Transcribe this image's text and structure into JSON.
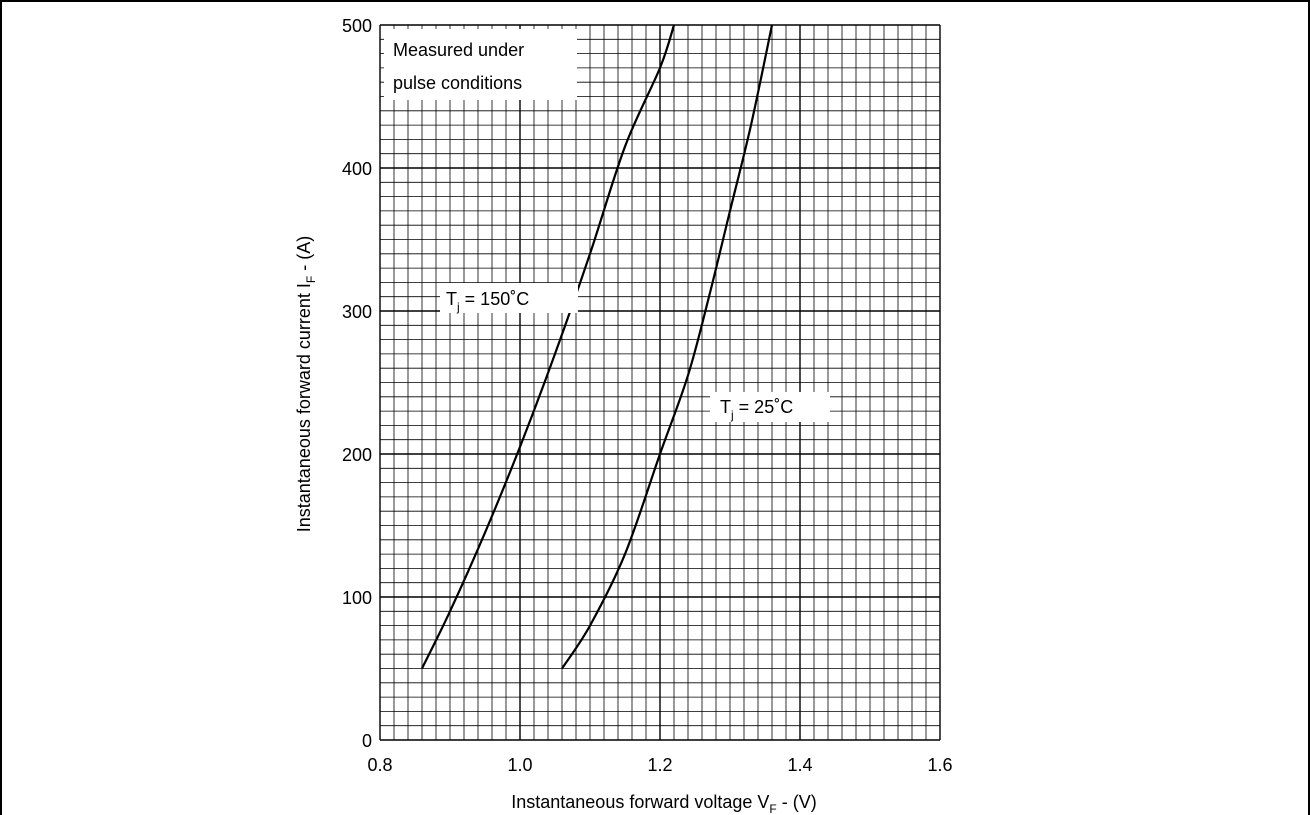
{
  "chart_data": {
    "type": "line",
    "xlabel": "Instantaneous forward voltage V",
    "xlabel_sub": "F",
    "xlabel_unit": " - (V)",
    "ylabel": "Instantaneous forward current I",
    "ylabel_sub": "F",
    "ylabel_unit": " - (A)",
    "xlim": [
      0.8,
      1.6
    ],
    "ylim": [
      0,
      500
    ],
    "xticks": [
      "0.8",
      "1.0",
      "1.2",
      "1.4",
      "1.6"
    ],
    "yticks": [
      "0",
      "100",
      "200",
      "300",
      "400",
      "500"
    ],
    "grid": true,
    "note_line1": "Measured under",
    "note_line2": "pulse conditions",
    "series": [
      {
        "label_main": "T",
        "label_sub": "j",
        "label_rest": " = 150˚C",
        "x": [
          0.86,
          0.9,
          0.95,
          1.0,
          1.05,
          1.1,
          1.15,
          1.2,
          1.22
        ],
        "y": [
          50,
          90,
          145,
          205,
          270,
          340,
          415,
          470,
          500
        ]
      },
      {
        "label_main": "T",
        "label_sub": "j",
        "label_rest": " = 25˚C",
        "x": [
          1.06,
          1.1,
          1.15,
          1.2,
          1.24,
          1.27,
          1.3,
          1.33,
          1.36
        ],
        "y": [
          50,
          80,
          130,
          200,
          255,
          310,
          370,
          430,
          500
        ]
      }
    ]
  }
}
